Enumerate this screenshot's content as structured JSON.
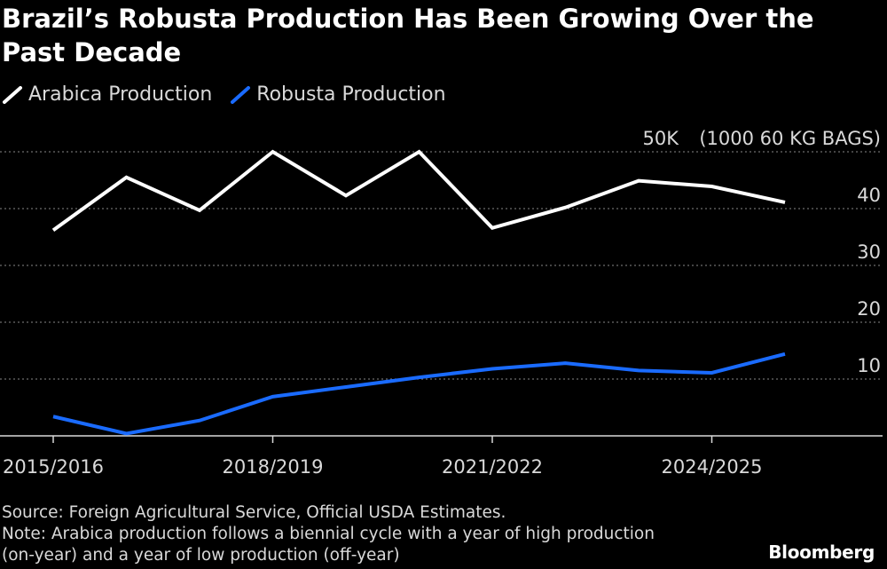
{
  "title": "Brazil’s Robusta Production Has Been Growing Over the Past Decade",
  "legend": [
    {
      "label": "Arabica Production",
      "color": "#ffffff"
    },
    {
      "label": "Robusta Production",
      "color": "#1a6bff"
    }
  ],
  "footer": {
    "source": "Source: Foreign Agricultural Service, Official USDA Estimates.",
    "note": "Note: Arabica production follows a biennial cycle with a year of high production (on-year) and a year of low production (off-year)"
  },
  "brand": "Bloomberg",
  "chart_data": {
    "type": "line",
    "y_unit_label": "(1000 60 KG BAGS)",
    "ylim": [
      0,
      50
    ],
    "yticks": [
      {
        "value": 10,
        "label": "10"
      },
      {
        "value": 20,
        "label": "20"
      },
      {
        "value": 30,
        "label": "30"
      },
      {
        "value": 40,
        "label": "40"
      },
      {
        "value": 50,
        "label": "50K"
      }
    ],
    "x": [
      "2015/2016",
      "2016/2017",
      "2017/2018",
      "2018/2019",
      "2019/2020",
      "2020/2021",
      "2021/2022",
      "2022/2023",
      "2023/2024",
      "2024/2025",
      "2025/2026"
    ],
    "xtick_labels": [
      "2015/2016",
      "2018/2019",
      "2021/2022",
      "2024/2025"
    ],
    "grid": "horizontal",
    "legend_position": "top-left",
    "series": [
      {
        "name": "Arabica Production",
        "color": "#ffffff",
        "values": [
          36.2,
          45.5,
          39.7,
          50.0,
          42.3,
          50.0,
          36.6,
          40.2,
          44.9,
          43.9,
          41.1
        ]
      },
      {
        "name": "Robusta Production",
        "color": "#1a6bff",
        "values": [
          3.4,
          0.4,
          2.7,
          6.9,
          8.6,
          10.3,
          11.8,
          12.8,
          11.5,
          11.1,
          14.4
        ]
      }
    ]
  }
}
